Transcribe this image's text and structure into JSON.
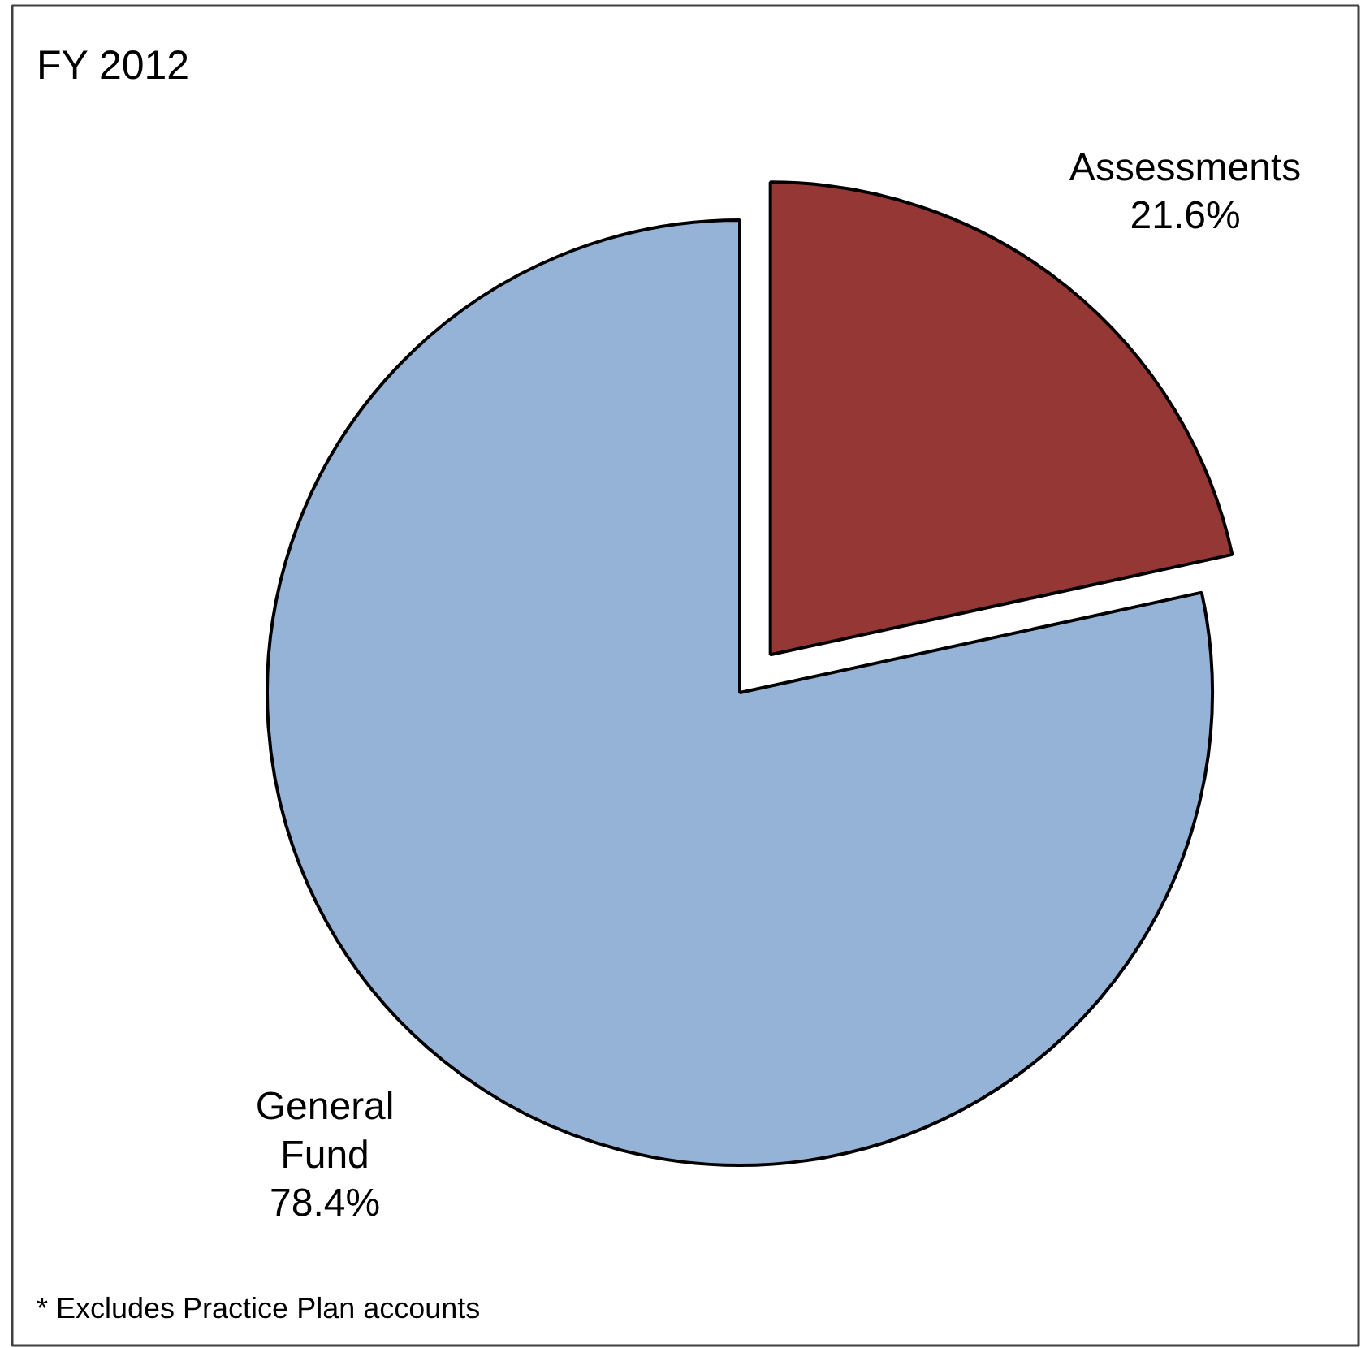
{
  "chart_data": {
    "type": "pie",
    "title": "FY 2012",
    "categories": [
      "Assessments",
      "General Fund"
    ],
    "values": [
      21.6,
      78.4
    ],
    "value_labels": [
      "21.6%",
      "78.4%"
    ],
    "colors": [
      "#953735",
      "#95b3d7"
    ],
    "annotations": [
      "* Excludes Practice Plan accounts"
    ]
  }
}
